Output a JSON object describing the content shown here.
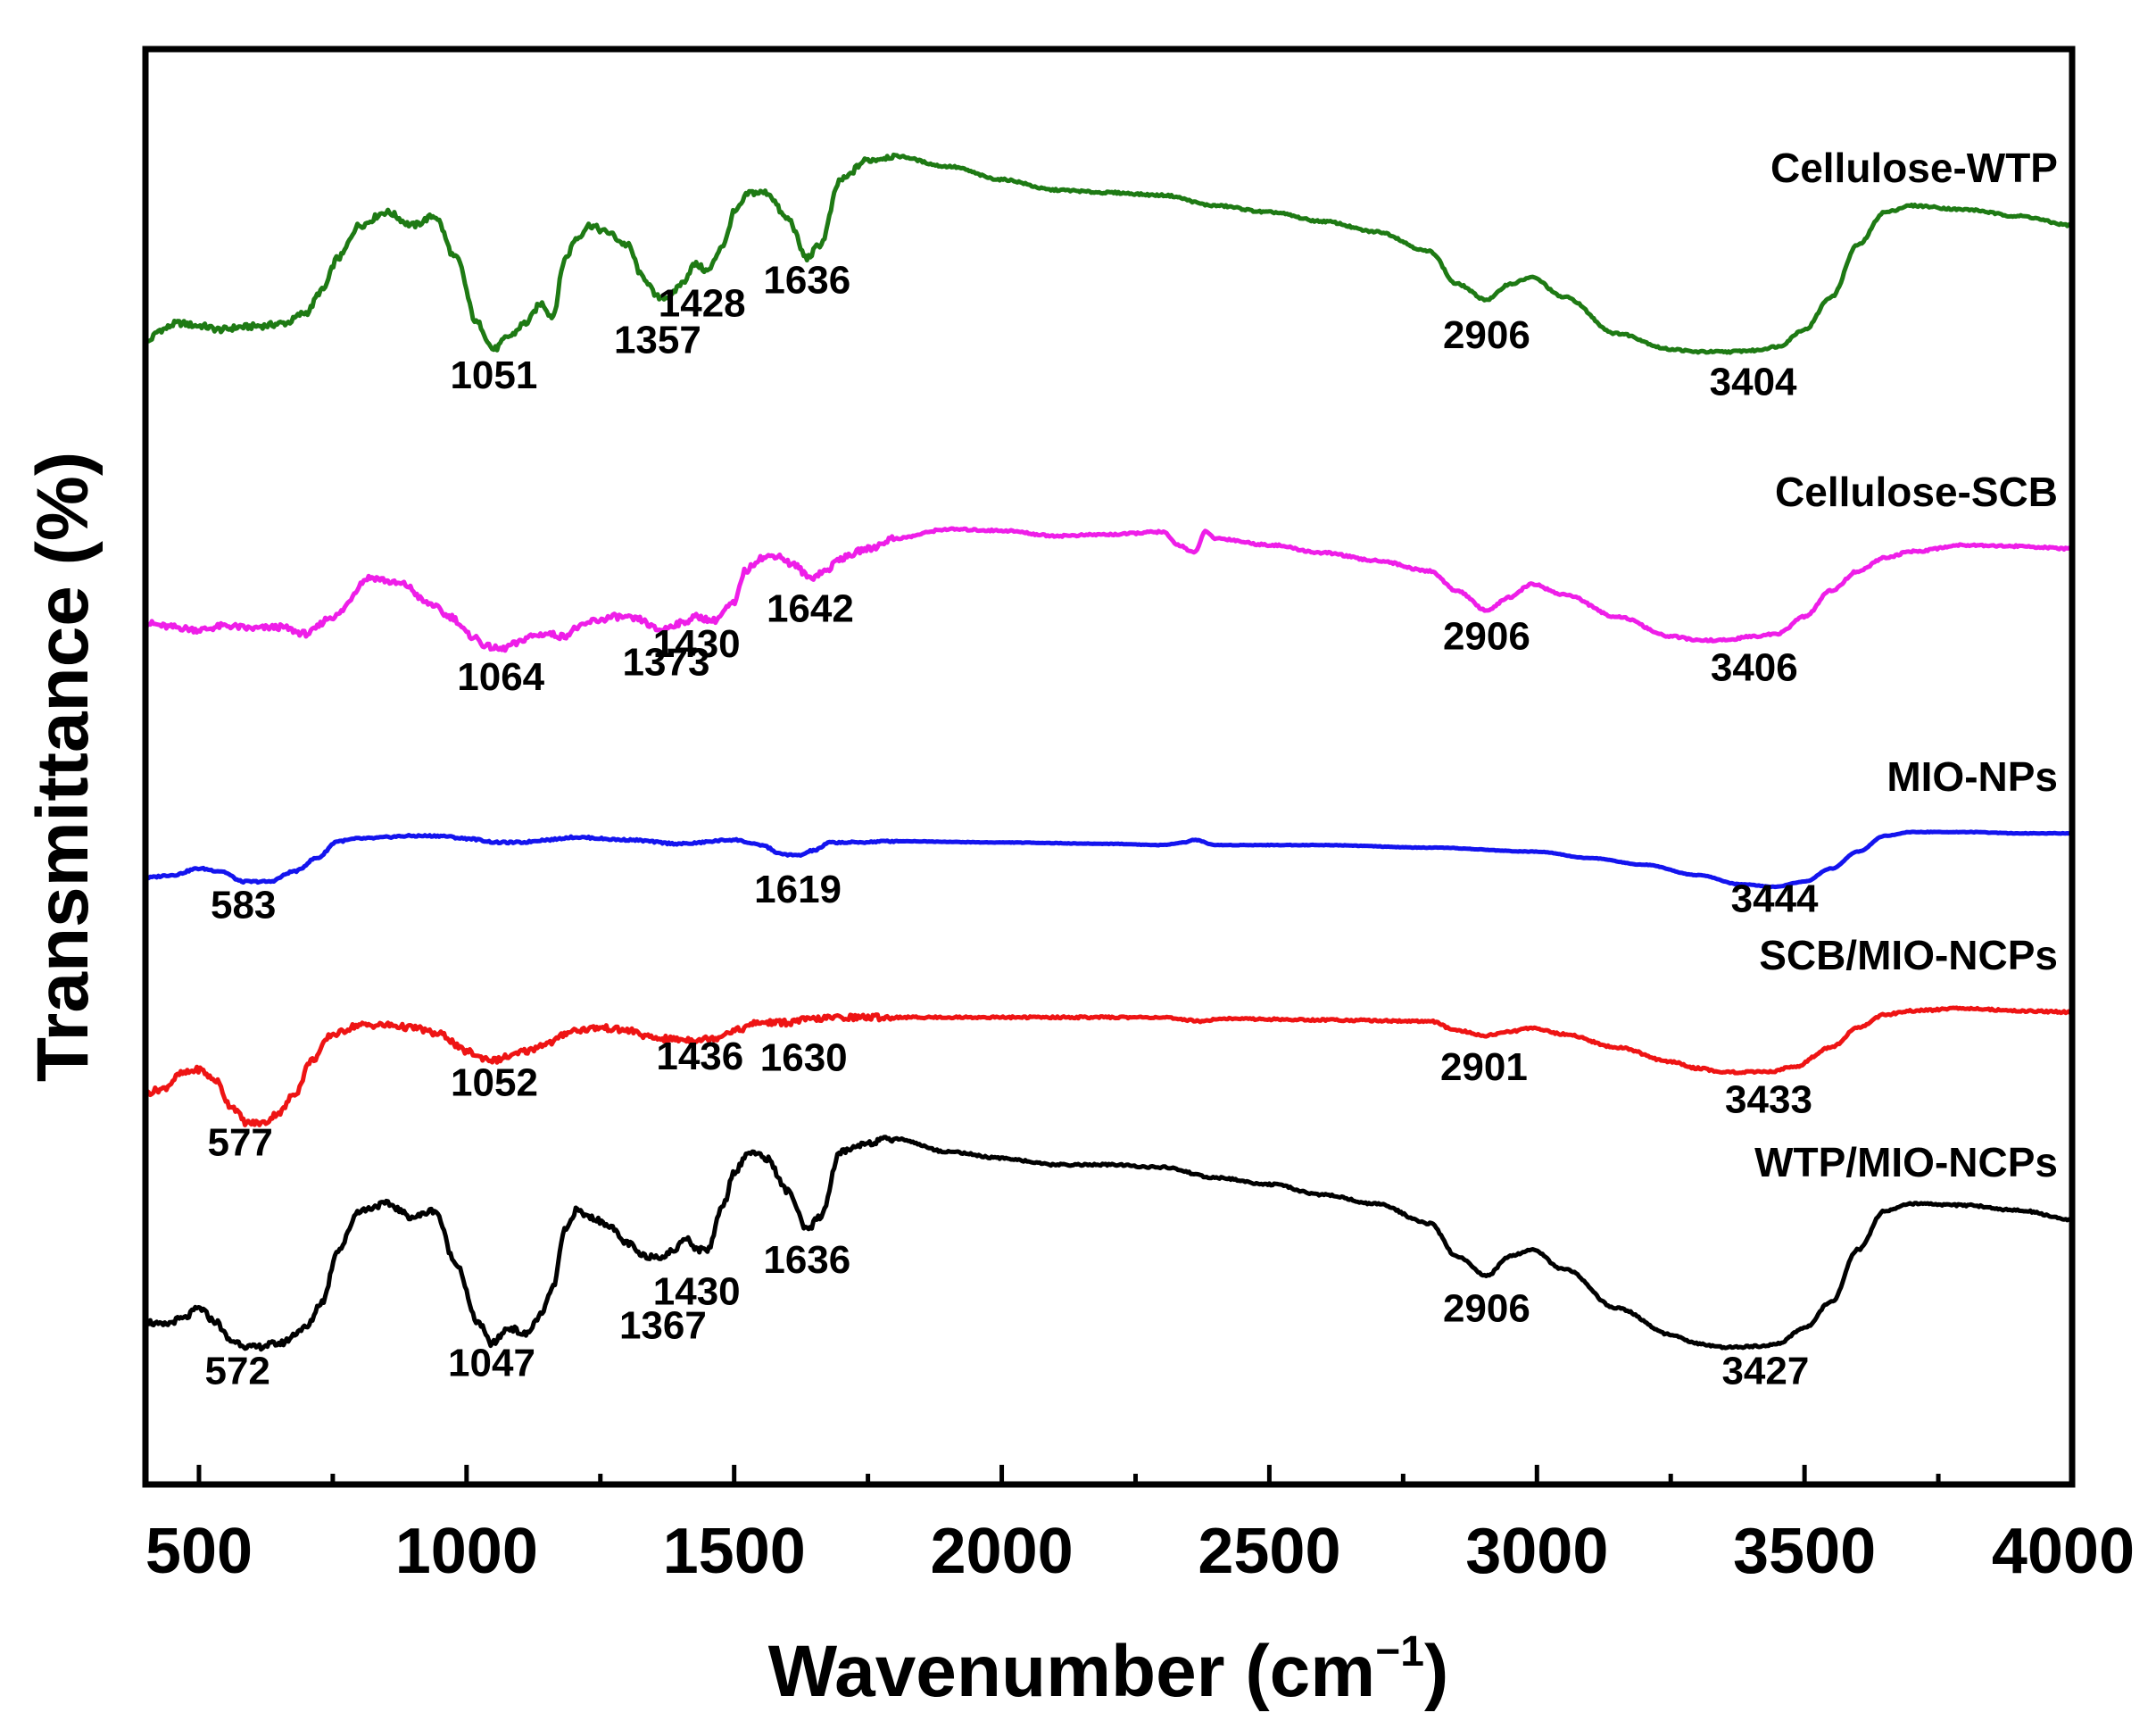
{
  "chart_data": {
    "type": "line",
    "xlabel": "Wavenumber (cm",
    "xlabel_sup": "−1",
    "xlabel_close": ")",
    "ylabel": "Transmittance (%)",
    "xlim": [
      400,
      4000
    ],
    "x_ticks": [
      500,
      1000,
      1500,
      2000,
      2500,
      3000,
      3500,
      4000
    ],
    "x_tick_labels": [
      "500",
      "1000",
      "1500",
      "2000",
      "2500",
      "3000",
      "3500",
      "4000"
    ],
    "y_ticks_shown": false,
    "grid": false,
    "legend": "none; series names printed as labels at top-right of each trace",
    "series": [
      {
        "name": "Cellulose-WTP",
        "color": "#1e7a14",
        "x": [
          400,
          430,
          460,
          500,
          540,
          580,
          620,
          660,
          700,
          730,
          760,
          800,
          850,
          900,
          940,
          980,
          1020,
          1051,
          1080,
          1110,
          1140,
          1160,
          1185,
          1205,
          1230,
          1260,
          1300,
          1330,
          1357,
          1380,
          1400,
          1428,
          1450,
          1480,
          1500,
          1530,
          1560,
          1600,
          1636,
          1660,
          1700,
          1750,
          1800,
          1900,
          2000,
          2100,
          2200,
          2300,
          2400,
          2500,
          2600,
          2700,
          2800,
          2850,
          2906,
          2950,
          2990,
          3050,
          3150,
          3250,
          3300,
          3350,
          3404,
          3450,
          3500,
          3550,
          3600,
          3650,
          3700,
          3800,
          3900,
          4000
        ],
        "y": [
          7.5,
          8.5,
          9.0,
          8.8,
          8.5,
          8.7,
          8.8,
          9.0,
          9.8,
          11.5,
          14.0,
          16.5,
          17.5,
          16.5,
          17.2,
          14.0,
          9.0,
          7.0,
          8.0,
          9.0,
          10.5,
          9.5,
          14.0,
          15.5,
          16.5,
          16.0,
          15.0,
          12.5,
          11.0,
          11.0,
          12.0,
          13.5,
          13.0,
          15.0,
          17.5,
          19.0,
          19.0,
          17.0,
          14.0,
          15.0,
          20.0,
          21.5,
          21.8,
          21.0,
          20.0,
          19.2,
          19.0,
          18.8,
          18.0,
          17.5,
          16.8,
          16.0,
          14.5,
          12.0,
          10.8,
          12.0,
          12.5,
          11.0,
          8.2,
          7.0,
          6.8,
          6.8,
          6.9,
          7.2,
          8.5,
          11.0,
          15.0,
          17.5,
          18.0,
          17.7,
          17.2,
          16.5
        ],
        "annotations": [
          {
            "label": "1051",
            "x": 1051,
            "y": 4.0
          },
          {
            "label": "1357",
            "x": 1357,
            "y": 6.7
          },
          {
            "label": "1428",
            "x": 1440,
            "y": 9.5
          },
          {
            "label": "1636",
            "x": 1636,
            "y": 11.3
          },
          {
            "label": "2906",
            "x": 2906,
            "y": 7.1
          },
          {
            "label": "3404",
            "x": 3404,
            "y": 3.5
          }
        ]
      },
      {
        "name": "Cellulose-SCB",
        "color": "#ee1ee8",
        "x": [
          400,
          450,
          500,
          550,
          600,
          650,
          700,
          750,
          820,
          880,
          930,
          970,
          1010,
          1040,
          1064,
          1090,
          1120,
          1150,
          1180,
          1210,
          1240,
          1280,
          1320,
          1360,
          1400,
          1430,
          1460,
          1500,
          1520,
          1550,
          1580,
          1610,
          1642,
          1670,
          1700,
          1750,
          1800,
          1900,
          2000,
          2100,
          2200,
          2300,
          2330,
          2360,
          2380,
          2400,
          2500,
          2600,
          2700,
          2800,
          2850,
          2906,
          2950,
          2990,
          3050,
          3150,
          3250,
          3300,
          3350,
          3406,
          3450,
          3500,
          3550,
          3600,
          3650,
          3700,
          3800,
          3900,
          4000
        ],
        "y": [
          -14.0,
          -14.3,
          -14.5,
          -14.2,
          -14.4,
          -14.3,
          -14.8,
          -13.5,
          -10.5,
          -11.0,
          -12.5,
          -13.5,
          -15.0,
          -15.8,
          -16.0,
          -15.6,
          -15.0,
          -14.8,
          -15.0,
          -14.3,
          -13.8,
          -13.5,
          -13.7,
          -14.5,
          -14.0,
          -13.5,
          -13.8,
          -12.5,
          -10.0,
          -9.0,
          -8.8,
          -9.5,
          -10.5,
          -10.0,
          -9.0,
          -8.3,
          -7.5,
          -6.8,
          -6.9,
          -7.3,
          -7.2,
          -7.0,
          -8.0,
          -8.6,
          -7.0,
          -7.5,
          -8.0,
          -8.6,
          -9.2,
          -10.0,
          -11.5,
          -13.0,
          -12.0,
          -11.0,
          -11.8,
          -13.5,
          -15.0,
          -15.3,
          -15.3,
          -15.0,
          -14.8,
          -13.5,
          -11.5,
          -10.0,
          -9.0,
          -8.5,
          -8.0,
          -8.1,
          -8.3
        ],
        "annotations": [
          {
            "label": "1064",
            "x": 1064,
            "y": -19.1
          },
          {
            "label": "1373",
            "x": 1373,
            "y": -18.0
          },
          {
            "label": "1430",
            "x": 1430,
            "y": -16.6
          },
          {
            "label": "1642",
            "x": 1642,
            "y": -13.9
          },
          {
            "label": "2906",
            "x": 2906,
            "y": -16.0
          },
          {
            "label": "3406",
            "x": 3406,
            "y": -18.4
          }
        ]
      },
      {
        "name": "MIO-NPs",
        "color": "#1414ee",
        "x": [
          400,
          450,
          500,
          540,
          583,
          630,
          680,
          720,
          760,
          800,
          900,
          950,
          1000,
          1060,
          1100,
          1150,
          1200,
          1300,
          1400,
          1500,
          1550,
          1590,
          1619,
          1650,
          1680,
          1720,
          1800,
          2000,
          2200,
          2300,
          2340,
          2360,
          2400,
          2600,
          2800,
          3000,
          3100,
          3200,
          3300,
          3380,
          3444,
          3500,
          3550,
          3600,
          3650,
          3700,
          3800,
          3900,
          4000
        ],
        "y": [
          -33.5,
          -33.3,
          -32.8,
          -33.0,
          -33.8,
          -33.8,
          -33.0,
          -32.0,
          -30.7,
          -30.5,
          -30.3,
          -30.3,
          -30.5,
          -30.8,
          -30.8,
          -30.6,
          -30.4,
          -30.6,
          -30.9,
          -30.6,
          -31.0,
          -31.7,
          -31.8,
          -31.4,
          -30.8,
          -30.8,
          -30.7,
          -30.8,
          -30.9,
          -31.0,
          -30.8,
          -30.6,
          -31.0,
          -31.0,
          -31.2,
          -31.5,
          -32.0,
          -32.5,
          -33.3,
          -34.0,
          -34.2,
          -33.8,
          -32.8,
          -31.5,
          -30.3,
          -30.0,
          -30.0,
          -30.1,
          -30.1
        ],
        "annotations": [
          {
            "label": "583",
            "x": 583,
            "y": -36.6
          },
          {
            "label": "1619",
            "x": 1619,
            "y": -35.4
          },
          {
            "label": "3444",
            "x": 3444,
            "y": -36.1
          }
        ]
      },
      {
        "name": "SCB/MIO-NCPs",
        "color": "#ee1414",
        "x": [
          400,
          430,
          470,
          500,
          530,
          560,
          590,
          620,
          650,
          680,
          710,
          750,
          800,
          850,
          900,
          950,
          1000,
          1030,
          1052,
          1080,
          1110,
          1150,
          1200,
          1250,
          1300,
          1350,
          1400,
          1436,
          1460,
          1500,
          1550,
          1600,
          1630,
          1660,
          1700,
          1800,
          2000,
          2200,
          2300,
          2340,
          2380,
          2400,
          2600,
          2800,
          2850,
          2901,
          2950,
          2990,
          3050,
          3150,
          3250,
          3300,
          3350,
          3433,
          3480,
          3550,
          3600,
          3650,
          3700,
          3800,
          3900,
          4000
        ],
        "y": [
          -50.0,
          -49.7,
          -48.5,
          -48.2,
          -49.0,
          -51.0,
          -52.3,
          -52.3,
          -51.5,
          -50.0,
          -47.5,
          -45.5,
          -44.8,
          -44.8,
          -45.0,
          -45.5,
          -46.8,
          -47.3,
          -47.5,
          -47.2,
          -46.8,
          -46.2,
          -45.2,
          -45.0,
          -45.2,
          -45.8,
          -45.9,
          -45.9,
          -45.8,
          -45.2,
          -44.6,
          -44.6,
          -44.4,
          -44.3,
          -44.2,
          -44.2,
          -44.2,
          -44.2,
          -44.2,
          -44.4,
          -44.5,
          -44.3,
          -44.4,
          -44.5,
          -45.2,
          -45.6,
          -45.3,
          -45.0,
          -45.5,
          -46.5,
          -47.6,
          -48.1,
          -48.4,
          -48.4,
          -48.0,
          -46.5,
          -45.0,
          -44.0,
          -43.7,
          -43.5,
          -43.7,
          -43.8
        ],
        "annotations": [
          {
            "label": "577",
            "x": 577,
            "y": -54.8
          },
          {
            "label": "1052",
            "x": 1052,
            "y": -50.2
          },
          {
            "label": "1436",
            "x": 1436,
            "y": -48.2
          },
          {
            "label": "1630",
            "x": 1630,
            "y": -48.3
          },
          {
            "label": "2901",
            "x": 2901,
            "y": -49.0
          },
          {
            "label": "3433",
            "x": 3433,
            "y": -51.5
          }
        ]
      },
      {
        "name": "WTP/MIO-NCPs",
        "color": "#000000",
        "x": [
          400,
          430,
          470,
          500,
          530,
          560,
          600,
          650,
          700,
          730,
          760,
          800,
          850,
          900,
          940,
          980,
          1020,
          1047,
          1080,
          1110,
          1140,
          1160,
          1185,
          1205,
          1230,
          1260,
          1300,
          1330,
          1367,
          1390,
          1410,
          1430,
          1450,
          1480,
          1500,
          1530,
          1560,
          1600,
          1636,
          1660,
          1700,
          1750,
          1800,
          1900,
          2000,
          2100,
          2200,
          2300,
          2400,
          2500,
          2600,
          2700,
          2800,
          2850,
          2906,
          2950,
          2990,
          3050,
          3150,
          3250,
          3300,
          3350,
          3427,
          3450,
          3500,
          3550,
          3600,
          3650,
          3700,
          3800,
          3900,
          4000
        ],
        "y": [
          -67.5,
          -67.8,
          -67.3,
          -66.5,
          -67.5,
          -69.0,
          -69.5,
          -69.2,
          -68.0,
          -66.0,
          -62.0,
          -59.0,
          -58.5,
          -59.5,
          -59.0,
          -63.0,
          -67.5,
          -69.2,
          -68.0,
          -68.5,
          -67.0,
          -65.0,
          -60.5,
          -59.0,
          -59.5,
          -60.0,
          -61.5,
          -62.5,
          -62.5,
          -62.0,
          -61.0,
          -62.0,
          -62.0,
          -58.5,
          -56.0,
          -54.5,
          -55.0,
          -57.5,
          -60.5,
          -59.5,
          -54.5,
          -53.8,
          -53.5,
          -54.5,
          -55.0,
          -55.5,
          -55.5,
          -55.7,
          -56.5,
          -57.0,
          -57.8,
          -58.5,
          -60.0,
          -62.5,
          -64.0,
          -62.5,
          -62.0,
          -63.5,
          -66.5,
          -68.5,
          -69.2,
          -69.5,
          -69.4,
          -69.2,
          -68.0,
          -66.0,
          -62.0,
          -59.0,
          -58.5,
          -58.6,
          -59.0,
          -59.7
        ],
        "annotations": [
          {
            "label": "572",
            "x": 572,
            "y": -72.3
          },
          {
            "label": "1047",
            "x": 1047,
            "y": -71.7
          },
          {
            "label": "1367",
            "x": 1367,
            "y": -68.8
          },
          {
            "label": "1430",
            "x": 1430,
            "y": -66.2
          },
          {
            "label": "1636",
            "x": 1636,
            "y": -63.8
          },
          {
            "label": "2906",
            "x": 2906,
            "y": -67.5
          },
          {
            "label": "3427",
            "x": 3427,
            "y": -72.3
          }
        ]
      }
    ]
  }
}
